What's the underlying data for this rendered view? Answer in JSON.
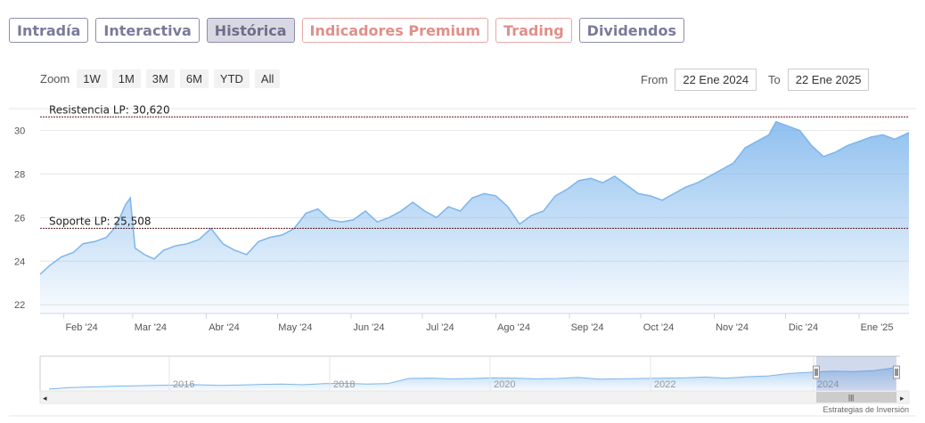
{
  "tabs": [
    {
      "label": "Intradía",
      "color": "purple"
    },
    {
      "label": "Interactiva",
      "color": "purple"
    },
    {
      "label": "Histórica",
      "color": "purple",
      "active": true
    },
    {
      "label": "Indicadores Premium",
      "color": "red"
    },
    {
      "label": "Trading",
      "color": "red"
    },
    {
      "label": "Dividendos",
      "color": "purple"
    }
  ],
  "zoom": {
    "label": "Zoom",
    "buttons": [
      "1W",
      "1M",
      "3M",
      "6M",
      "YTD",
      "All"
    ]
  },
  "range": {
    "from_label": "From",
    "from_value": "22 Ene 2024",
    "to_label": "To",
    "to_value": "22 Ene 2025"
  },
  "credit": "Estrategias de Inversión",
  "colors": {
    "line": "#7cb5ec",
    "accent_purple": "#7a7a9a",
    "accent_red": "#e08f8a"
  },
  "chart_data": {
    "type": "area",
    "ylim": [
      21.6,
      31.0
    ],
    "yticks": [
      22,
      24,
      26,
      28,
      30
    ],
    "x_ticks": [
      "Feb '24",
      "Mar '24",
      "Abr '24",
      "May '24",
      "Jun '24",
      "Jul '24",
      "Ago '24",
      "Sep '24",
      "Oct '24",
      "Nov '24",
      "Dic '24",
      "Ene '25"
    ],
    "x_tick_dates": [
      "2024-02-01",
      "2024-03-01",
      "2024-04-01",
      "2024-05-01",
      "2024-06-01",
      "2024-07-01",
      "2024-08-01",
      "2024-09-01",
      "2024-10-01",
      "2024-11-01",
      "2024-12-01",
      "2025-01-01"
    ],
    "x_range": [
      "2024-01-22",
      "2025-01-22"
    ],
    "plotlines": [
      {
        "label": "Resistencia LP: 30,620",
        "value": 30.62
      },
      {
        "label": "Soporte LP: 25,508",
        "value": 25.508
      }
    ],
    "series": [
      {
        "x": [
          "2024-01-22",
          "2024-01-26",
          "2024-01-31",
          "2024-02-05",
          "2024-02-09",
          "2024-02-14",
          "2024-02-19",
          "2024-02-23",
          "2024-02-27",
          "2024-02-29",
          "2024-03-02",
          "2024-03-06",
          "2024-03-10",
          "2024-03-14",
          "2024-03-19",
          "2024-03-24",
          "2024-03-29",
          "2024-04-03",
          "2024-04-08",
          "2024-04-13",
          "2024-04-18",
          "2024-04-23",
          "2024-04-28",
          "2024-05-03",
          "2024-05-08",
          "2024-05-13",
          "2024-05-18",
          "2024-05-23",
          "2024-05-28",
          "2024-06-02",
          "2024-06-07",
          "2024-06-12",
          "2024-06-17",
          "2024-06-22",
          "2024-06-27",
          "2024-07-02",
          "2024-07-07",
          "2024-07-12",
          "2024-07-17",
          "2024-07-22",
          "2024-07-27",
          "2024-08-01",
          "2024-08-06",
          "2024-08-11",
          "2024-08-16",
          "2024-08-21",
          "2024-08-26",
          "2024-08-31",
          "2024-09-05",
          "2024-09-10",
          "2024-09-15",
          "2024-09-20",
          "2024-09-25",
          "2024-09-30",
          "2024-10-05",
          "2024-10-10",
          "2024-10-15",
          "2024-10-20",
          "2024-10-25",
          "2024-10-30",
          "2024-11-04",
          "2024-11-09",
          "2024-11-14",
          "2024-11-19",
          "2024-11-24",
          "2024-11-27",
          "2024-12-02",
          "2024-12-07",
          "2024-12-12",
          "2024-12-17",
          "2024-12-22",
          "2024-12-27",
          "2025-01-01",
          "2025-01-06",
          "2025-01-11",
          "2025-01-16",
          "2025-01-22"
        ],
        "y": [
          23.4,
          23.8,
          24.2,
          24.4,
          24.8,
          24.9,
          25.1,
          25.6,
          26.6,
          26.9,
          24.6,
          24.3,
          24.1,
          24.5,
          24.7,
          24.8,
          25.0,
          25.5,
          24.8,
          24.5,
          24.3,
          24.9,
          25.1,
          25.2,
          25.5,
          26.2,
          26.4,
          25.9,
          25.8,
          25.9,
          26.3,
          25.8,
          26.0,
          26.3,
          26.7,
          26.3,
          26.0,
          26.5,
          26.3,
          26.9,
          27.1,
          27.0,
          26.5,
          25.7,
          26.1,
          26.3,
          27.0,
          27.3,
          27.7,
          27.8,
          27.6,
          27.9,
          27.5,
          27.1,
          27.0,
          26.8,
          27.1,
          27.4,
          27.6,
          27.9,
          28.2,
          28.5,
          29.2,
          29.5,
          29.8,
          30.4,
          30.2,
          30.0,
          29.3,
          28.8,
          29.0,
          29.3,
          29.5,
          29.7,
          29.8,
          29.6,
          29.9
        ]
      }
    ],
    "navigator": {
      "labels": [
        "2016",
        "2018",
        "2020",
        "2022",
        "2024"
      ],
      "y": [
        22.0,
        22.4,
        22.6,
        22.8,
        22.9,
        23.0,
        23.1,
        23.2,
        23.0,
        23.1,
        23.3,
        23.4,
        23.2,
        23.5,
        23.6,
        23.4,
        23.5,
        24.9,
        25.0,
        24.8,
        24.9,
        25.1,
        25.0,
        24.8,
        24.9,
        25.2,
        24.7,
        24.8,
        24.9,
        25.0,
        25.1,
        25.3,
        25.0,
        25.4,
        25.6,
        26.3,
        26.6,
        26.9,
        26.8,
        27.1,
        27.9
      ]
    }
  }
}
